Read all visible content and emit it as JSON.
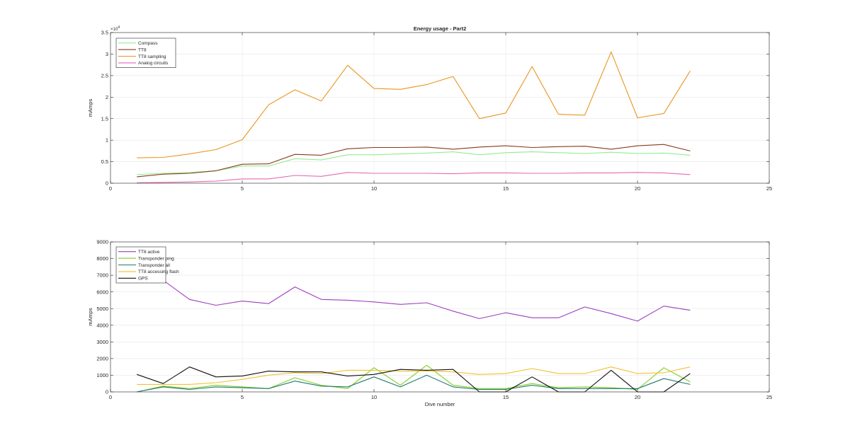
{
  "chart_data": [
    {
      "type": "line",
      "title": "Energy usage - Part2",
      "xlabel": "",
      "ylabel": "mAmps",
      "xlim": [
        0,
        25
      ],
      "ylim": [
        0,
        35000
      ],
      "xticks": [
        0,
        5,
        10,
        15,
        20,
        25
      ],
      "yticks": [
        0,
        5000,
        10000,
        15000,
        20000,
        25000,
        30000,
        35000
      ],
      "ytick_labels": [
        "0",
        "0.5",
        "1",
        "1.5",
        "2",
        "2.5",
        "3",
        "3.5"
      ],
      "exponent_label": "×10",
      "exponent_power": "4",
      "grid": true,
      "legend_location": "top-left",
      "x": [
        1,
        2,
        3,
        4,
        5,
        6,
        7,
        8,
        9,
        10,
        11,
        12,
        13,
        14,
        15,
        16,
        17,
        18,
        19,
        20,
        21,
        22
      ],
      "series": [
        {
          "name": "Compass",
          "color": "#90ee90",
          "values": [
            2000,
            2300,
            2500,
            2900,
            4000,
            4000,
            5700,
            5400,
            6600,
            6600,
            6800,
            7000,
            7300,
            6600,
            7100,
            7300,
            7100,
            6900,
            7200,
            6900,
            7000,
            6500
          ]
        },
        {
          "name": "TT8",
          "color": "#8b3a1a",
          "values": [
            1500,
            2100,
            2300,
            2900,
            4400,
            4500,
            6700,
            6500,
            8000,
            8300,
            8300,
            8400,
            7900,
            8400,
            8700,
            8300,
            8500,
            8600,
            7900,
            8700,
            9000,
            7500
          ]
        },
        {
          "name": "TT8 sampling",
          "color": "#e8961e",
          "values": [
            5900,
            6000,
            6800,
            7800,
            10100,
            18200,
            21700,
            19100,
            27400,
            22000,
            21800,
            22900,
            24800,
            15000,
            16300,
            27100,
            16000,
            15800,
            30500,
            15200,
            16200,
            26100
          ]
        },
        {
          "name": "Analog circuits",
          "color": "#e468b4",
          "values": [
            100,
            200,
            300,
            500,
            1000,
            1000,
            1800,
            1600,
            2500,
            2300,
            2300,
            2300,
            2200,
            2400,
            2400,
            2300,
            2300,
            2400,
            2400,
            2500,
            2400,
            2000
          ]
        }
      ]
    },
    {
      "type": "line",
      "title": "",
      "xlabel": "Dive number",
      "ylabel": "mAmps",
      "xlim": [
        0,
        25
      ],
      "ylim": [
        0,
        9000
      ],
      "xticks": [
        0,
        5,
        10,
        15,
        20,
        25
      ],
      "yticks": [
        0,
        1000,
        2000,
        3000,
        4000,
        5000,
        6000,
        7000,
        8000,
        9000
      ],
      "ytick_labels": [
        "0",
        "1000",
        "2000",
        "3000",
        "4000",
        "5000",
        "6000",
        "7000",
        "8000",
        "9000"
      ],
      "grid": true,
      "legend_location": "top-left",
      "x": [
        1,
        2,
        3,
        4,
        5,
        6,
        7,
        8,
        9,
        10,
        11,
        12,
        13,
        14,
        15,
        16,
        17,
        18,
        19,
        20,
        21,
        22
      ],
      "series": [
        {
          "name": "TT8 active",
          "color": "#9b3fbf",
          "values": [
            7000,
            6700,
            5550,
            5200,
            5450,
            5300,
            6300,
            5550,
            5500,
            5400,
            5250,
            5350,
            4850,
            4400,
            4750,
            4450,
            4450,
            5100,
            4700,
            4250,
            5150,
            4900
          ]
        },
        {
          "name": "Transponder ping",
          "color": "#7fcf1f",
          "values": [
            0,
            350,
            200,
            400,
            300,
            200,
            850,
            400,
            200,
            1450,
            400,
            1600,
            400,
            200,
            200,
            500,
            250,
            300,
            250,
            150,
            1450,
            600
          ]
        },
        {
          "name": "Transponder all",
          "color": "#1f7a6e",
          "values": [
            0,
            300,
            150,
            300,
            250,
            200,
            650,
            350,
            300,
            900,
            300,
            1000,
            300,
            150,
            150,
            400,
            200,
            200,
            200,
            200,
            800,
            450
          ]
        },
        {
          "name": "TT8 accessing flash",
          "color": "#f2c12e",
          "values": [
            450,
            450,
            450,
            550,
            750,
            1000,
            1150,
            1100,
            1300,
            1300,
            1250,
            1250,
            1200,
            1050,
            1100,
            1400,
            1100,
            1100,
            1500,
            1100,
            1150,
            1500
          ]
        },
        {
          "name": "GPS",
          "color": "#111111",
          "values": [
            1050,
            500,
            1500,
            900,
            950,
            1250,
            1200,
            1200,
            950,
            1050,
            1350,
            1300,
            1350,
            0,
            0,
            900,
            0,
            0,
            1300,
            0,
            0,
            1100
          ]
        }
      ]
    }
  ]
}
